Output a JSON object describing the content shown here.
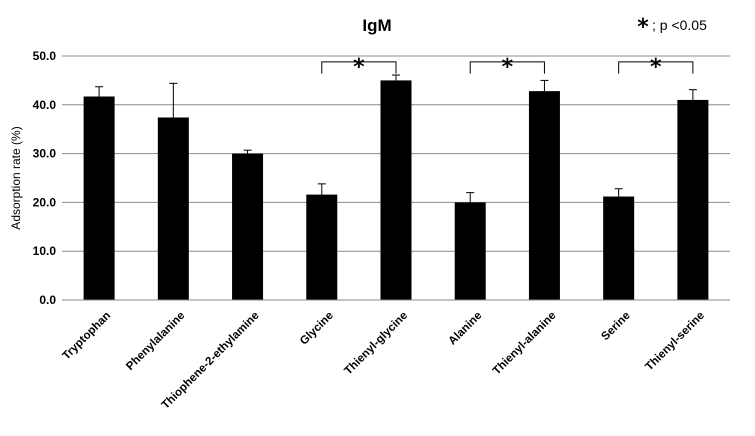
{
  "chart_data": {
    "type": "bar",
    "title": "IgM",
    "xlabel": "",
    "ylabel": "Adsorption rate (%)",
    "ylim": [
      0,
      50
    ],
    "yticks": [
      "0.0",
      "10.0",
      "20.0",
      "30.0",
      "40.0",
      "50.0"
    ],
    "grid": true,
    "categories": [
      "Tryptophan",
      "Phenylalanine",
      "Thiophene-2-ethylamine",
      "Glycine",
      "Thienyl-glycine",
      "Alanine",
      "Thienyl-alanine",
      "Serine",
      "Thienyl-serine"
    ],
    "values": [
      41.7,
      37.4,
      30.0,
      21.6,
      45.0,
      20.0,
      42.8,
      21.2,
      41.0
    ],
    "errors": [
      2.0,
      7.0,
      0.7,
      2.2,
      1.1,
      2.0,
      2.2,
      1.6,
      2.1
    ],
    "bar_color": "#000000",
    "significance": [
      {
        "from": 3,
        "to": 4,
        "symbol": "*"
      },
      {
        "from": 5,
        "to": 6,
        "symbol": "*"
      },
      {
        "from": 7,
        "to": 8,
        "symbol": "*"
      }
    ],
    "legend": {
      "symbol": "*",
      "text": "; p <0.05",
      "placement": "top-right"
    }
  }
}
